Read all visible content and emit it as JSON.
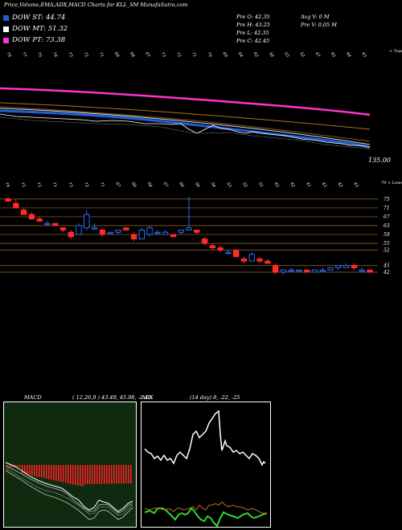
{
  "header": {
    "title": "Price,Volume,EMA,ADX,MACD Charts for KLL_SM MunafaSutra.com"
  },
  "legend": [
    {
      "label": "DOW ST: 44.74",
      "color": "#1e5fd6"
    },
    {
      "label": "DOW MT: 51.32",
      "color": "#ffffff"
    },
    {
      "label": "DOW PT: 73.38",
      "color": "#ff33cc"
    }
  ],
  "stats": {
    "open": "Pre   O: 42.35",
    "high": "Pre   H: 43.25",
    "low": "Pre   L: 42.35",
    "close": "Pre   C: 42.45",
    "avg_vol": "Avg V: 0   M",
    "pre_vol": "Pre   V: 0.05  M"
  },
  "panel1": {
    "price_label": "135.00",
    "top_ticks": [
      "79",
      "77",
      "75",
      "74",
      "73",
      "72",
      "71",
      "69",
      "68",
      "67",
      "73",
      "72",
      "71",
      "70",
      "69",
      "64",
      "62",
      "56",
      "53",
      "52",
      "47",
      "45",
      "44",
      "43"
    ],
    "corner_label": "< Tops"
  },
  "panel2": {
    "top_ticks": [
      "79",
      "75",
      "73",
      "71",
      "73",
      "72",
      "71",
      "67",
      "66",
      "64",
      "67",
      "66",
      "56",
      "54",
      "53",
      "52",
      "51",
      "45",
      "42",
      "41",
      "43",
      "42",
      "43"
    ],
    "corner_label": "79 < Lows",
    "y_labels": [
      "75",
      "71",
      "67",
      "63",
      "59",
      "55",
      "52",
      "45",
      "42"
    ]
  },
  "macd": {
    "label": "MACD",
    "values": "( 12,26,9 ) 43.49,  45.98,  -2.49"
  },
  "adx": {
    "label": "ADX",
    "values": "(14 day) 8,  -22,  -25"
  },
  "watermark": "MunafaSutra.com",
  "chart_data": {
    "type": "candlestick",
    "title": "Price,Volume,EMA,ADX,MACD Charts for KLL_SM MunafaSutra.com",
    "candles": [
      {
        "o": 75,
        "h": 76,
        "l": 74,
        "c": 74
      },
      {
        "o": 73,
        "h": 75,
        "l": 71,
        "c": 71
      },
      {
        "o": 70,
        "h": 71,
        "l": 68,
        "c": 68
      },
      {
        "o": 68,
        "h": 69,
        "l": 66,
        "c": 66
      },
      {
        "o": 66,
        "h": 67,
        "l": 65,
        "c": 65
      },
      {
        "o": 64,
        "h": 65,
        "l": 63,
        "c": 64
      },
      {
        "o": 64,
        "h": 64,
        "l": 63,
        "c": 63
      },
      {
        "o": 62,
        "h": 62,
        "l": 60,
        "c": 61
      },
      {
        "o": 60,
        "h": 61,
        "l": 57,
        "c": 58
      },
      {
        "o": 59,
        "h": 64,
        "l": 59,
        "c": 63
      },
      {
        "o": 62,
        "h": 70,
        "l": 61,
        "c": 68
      },
      {
        "o": 62,
        "h": 64,
        "l": 61,
        "c": 62
      },
      {
        "o": 61,
        "h": 62,
        "l": 58,
        "c": 59
      },
      {
        "o": 60,
        "h": 60,
        "l": 59,
        "c": 60
      },
      {
        "o": 60,
        "h": 61,
        "l": 59,
        "c": 61
      },
      {
        "o": 62,
        "h": 62,
        "l": 61,
        "c": 61
      },
      {
        "o": 59,
        "h": 60,
        "l": 56,
        "c": 57
      },
      {
        "o": 57,
        "h": 62,
        "l": 57,
        "c": 61
      },
      {
        "o": 59,
        "h": 63,
        "l": 58,
        "c": 62
      },
      {
        "o": 60,
        "h": 61,
        "l": 59,
        "c": 60
      },
      {
        "o": 59,
        "h": 61,
        "l": 59,
        "c": 60
      },
      {
        "o": 59,
        "h": 59,
        "l": 58,
        "c": 58
      },
      {
        "o": 60,
        "h": 61,
        "l": 59,
        "c": 61
      },
      {
        "o": 61,
        "h": 76,
        "l": 61,
        "c": 62
      },
      {
        "o": 61,
        "h": 61,
        "l": 59,
        "c": 60
      },
      {
        "o": 57,
        "h": 58,
        "l": 54,
        "c": 55
      },
      {
        "o": 54,
        "h": 55,
        "l": 52,
        "c": 53
      },
      {
        "o": 53,
        "h": 54,
        "l": 51,
        "c": 52
      },
      {
        "o": 51,
        "h": 52,
        "l": 50,
        "c": 51
      },
      {
        "o": 52,
        "h": 52,
        "l": 49,
        "c": 49
      },
      {
        "o": 48,
        "h": 49,
        "l": 46,
        "c": 47
      },
      {
        "o": 47,
        "h": 51,
        "l": 47,
        "c": 50
      },
      {
        "o": 48,
        "h": 49,
        "l": 46,
        "c": 47
      },
      {
        "o": 47,
        "h": 48,
        "l": 46,
        "c": 46
      },
      {
        "o": 45,
        "h": 46,
        "l": 41,
        "c": 42
      },
      {
        "o": 42,
        "h": 43,
        "l": 41,
        "c": 43
      },
      {
        "o": 43,
        "h": 44,
        "l": 42,
        "c": 43
      },
      {
        "o": 43,
        "h": 43,
        "l": 42,
        "c": 43
      },
      {
        "o": 43,
        "h": 43,
        "l": 42,
        "c": 42
      },
      {
        "o": 42,
        "h": 43,
        "l": 42,
        "c": 43
      },
      {
        "o": 43,
        "h": 44,
        "l": 42,
        "c": 43
      },
      {
        "o": 43,
        "h": 44,
        "l": 43,
        "c": 44
      },
      {
        "o": 44,
        "h": 45,
        "l": 43,
        "c": 45
      },
      {
        "o": 44,
        "h": 46,
        "l": 44,
        "c": 45
      },
      {
        "o": 45,
        "h": 46,
        "l": 43,
        "c": 44
      },
      {
        "o": 43,
        "h": 44,
        "l": 42,
        "c": 43
      },
      {
        "o": 43,
        "h": 43,
        "l": 42,
        "c": 42
      }
    ],
    "y_range": [
      38,
      80
    ],
    "gridlines": [
      75,
      71,
      67,
      63,
      59,
      55,
      52,
      45,
      42
    ]
  }
}
